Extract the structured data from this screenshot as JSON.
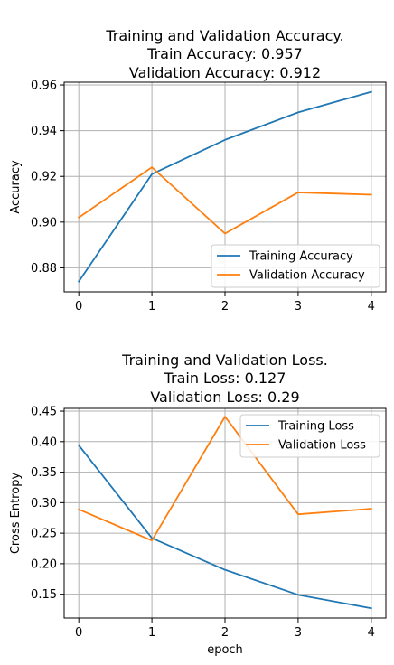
{
  "colors": {
    "training": "#1f77b4",
    "validation": "#ff7f0e"
  },
  "chart_data": [
    {
      "type": "line",
      "title": [
        "Training and Validation Accuracy.",
        "Train Accuracy: 0.957",
        "Validation Accuracy: 0.912"
      ],
      "xlabel": "",
      "ylabel": "Accuracy",
      "x": [
        0,
        1,
        2,
        3,
        4
      ],
      "xticks": [
        "0",
        "1",
        "2",
        "3",
        "4"
      ],
      "xlim": [
        -0.2,
        4.2
      ],
      "ylim": [
        0.8695,
        0.9612
      ],
      "yticks": [
        "0.88",
        "0.90",
        "0.92",
        "0.94",
        "0.96"
      ],
      "ytick_values": [
        0.88,
        0.9,
        0.92,
        0.94,
        0.96
      ],
      "grid": true,
      "legend_position": "lower right",
      "series": [
        {
          "name": "Training Accuracy",
          "color_key": "training",
          "values": [
            0.874,
            0.921,
            0.936,
            0.948,
            0.957
          ]
        },
        {
          "name": "Validation Accuracy",
          "color_key": "validation",
          "values": [
            0.902,
            0.924,
            0.895,
            0.913,
            0.912
          ]
        }
      ]
    },
    {
      "type": "line",
      "title": [
        "Training and Validation Loss.",
        "Train Loss: 0.127",
        "Validation Loss: 0.29"
      ],
      "xlabel": "epoch",
      "ylabel": "Cross Entropy",
      "x": [
        0,
        1,
        2,
        3,
        4
      ],
      "xticks": [
        "0",
        "1",
        "2",
        "3",
        "4"
      ],
      "xlim": [
        -0.2,
        4.2
      ],
      "ylim": [
        0.111,
        0.4545
      ],
      "yticks": [
        "0.15",
        "0.20",
        "0.25",
        "0.30",
        "0.35",
        "0.40",
        "0.45"
      ],
      "ytick_values": [
        0.15,
        0.2,
        0.25,
        0.3,
        0.35,
        0.4,
        0.45
      ],
      "grid": true,
      "legend_position": "upper right",
      "series": [
        {
          "name": "Training Loss",
          "color_key": "training",
          "values": [
            0.394,
            0.242,
            0.19,
            0.149,
            0.127
          ]
        },
        {
          "name": "Validation Loss",
          "color_key": "validation",
          "values": [
            0.289,
            0.238,
            0.441,
            0.281,
            0.29
          ]
        }
      ]
    }
  ]
}
